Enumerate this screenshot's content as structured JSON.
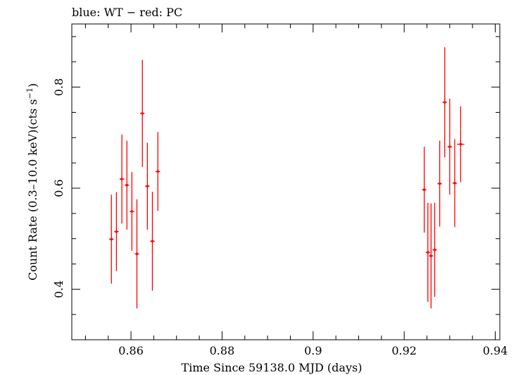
{
  "header": {
    "title": "blue: WT − red: PC"
  },
  "chart_data": {
    "type": "scatter",
    "title": "blue: WT − red: PC",
    "xlabel": "Time Since 59138.0 MJD (days)",
    "ylabel_main": "Count Rate (0.3–10.0 keV)(cts s",
    "ylabel_sup": "−1",
    "ylabel_end": ")",
    "xlim": [
      0.847,
      0.941
    ],
    "ylim": [
      0.3,
      0.925
    ],
    "x_ticks": [
      {
        "value": 0.86,
        "label": "0.86"
      },
      {
        "value": 0.88,
        "label": "0.88"
      },
      {
        "value": 0.9,
        "label": "0.9"
      },
      {
        "value": 0.92,
        "label": "0.92"
      },
      {
        "value": 0.94,
        "label": "0.94"
      }
    ],
    "y_ticks": [
      {
        "value": 0.4,
        "label": "0.4"
      },
      {
        "value": 0.6,
        "label": "0.6"
      },
      {
        "value": 0.8,
        "label": "0.8"
      }
    ],
    "grid": false,
    "colors": {
      "PC": "#ff0000",
      "WT": "#0000ff"
    },
    "series": [
      {
        "name": "PC",
        "color": "#ff0000",
        "points": [
          {
            "x": 0.8557,
            "y": 0.499,
            "xerr": 0.0005,
            "yerr_lo": 0.088,
            "yerr_hi": 0.088
          },
          {
            "x": 0.8568,
            "y": 0.514,
            "xerr": 0.0005,
            "yerr_lo": 0.078,
            "yerr_hi": 0.078
          },
          {
            "x": 0.858,
            "y": 0.618,
            "xerr": 0.0005,
            "yerr_lo": 0.088,
            "yerr_hi": 0.088
          },
          {
            "x": 0.8591,
            "y": 0.606,
            "xerr": 0.0005,
            "yerr_lo": 0.088,
            "yerr_hi": 0.088
          },
          {
            "x": 0.8602,
            "y": 0.554,
            "xerr": 0.0005,
            "yerr_lo": 0.078,
            "yerr_hi": 0.078
          },
          {
            "x": 0.8613,
            "y": 0.47,
            "xerr": 0.0005,
            "yerr_lo": 0.108,
            "yerr_hi": 0.108
          },
          {
            "x": 0.8625,
            "y": 0.748,
            "xerr": 0.0005,
            "yerr_lo": 0.106,
            "yerr_hi": 0.106
          },
          {
            "x": 0.8636,
            "y": 0.604,
            "xerr": 0.0005,
            "yerr_lo": 0.086,
            "yerr_hi": 0.086
          },
          {
            "x": 0.8647,
            "y": 0.495,
            "xerr": 0.0005,
            "yerr_lo": 0.098,
            "yerr_hi": 0.098
          },
          {
            "x": 0.8659,
            "y": 0.633,
            "xerr": 0.0005,
            "yerr_lo": 0.078,
            "yerr_hi": 0.078
          },
          {
            "x": 0.9244,
            "y": 0.597,
            "xerr": 0.0005,
            "yerr_lo": 0.085,
            "yerr_hi": 0.085
          },
          {
            "x": 0.9252,
            "y": 0.473,
            "xerr": 0.0005,
            "yerr_lo": 0.098,
            "yerr_hi": 0.098
          },
          {
            "x": 0.9259,
            "y": 0.466,
            "xerr": 0.0005,
            "yerr_lo": 0.104,
            "yerr_hi": 0.104
          },
          {
            "x": 0.9267,
            "y": 0.478,
            "xerr": 0.0005,
            "yerr_lo": 0.093,
            "yerr_hi": 0.093
          },
          {
            "x": 0.9278,
            "y": 0.609,
            "xerr": 0.0005,
            "yerr_lo": 0.085,
            "yerr_hi": 0.085
          },
          {
            "x": 0.9289,
            "y": 0.77,
            "xerr": 0.0005,
            "yerr_lo": 0.109,
            "yerr_hi": 0.109
          },
          {
            "x": 0.93,
            "y": 0.682,
            "xerr": 0.0005,
            "yerr_lo": 0.095,
            "yerr_hi": 0.095
          },
          {
            "x": 0.9311,
            "y": 0.61,
            "xerr": 0.0005,
            "yerr_lo": 0.087,
            "yerr_hi": 0.087
          },
          {
            "x": 0.9324,
            "y": 0.687,
            "xerr": 0.0008,
            "yerr_lo": 0.075,
            "yerr_hi": 0.075
          }
        ]
      }
    ]
  }
}
